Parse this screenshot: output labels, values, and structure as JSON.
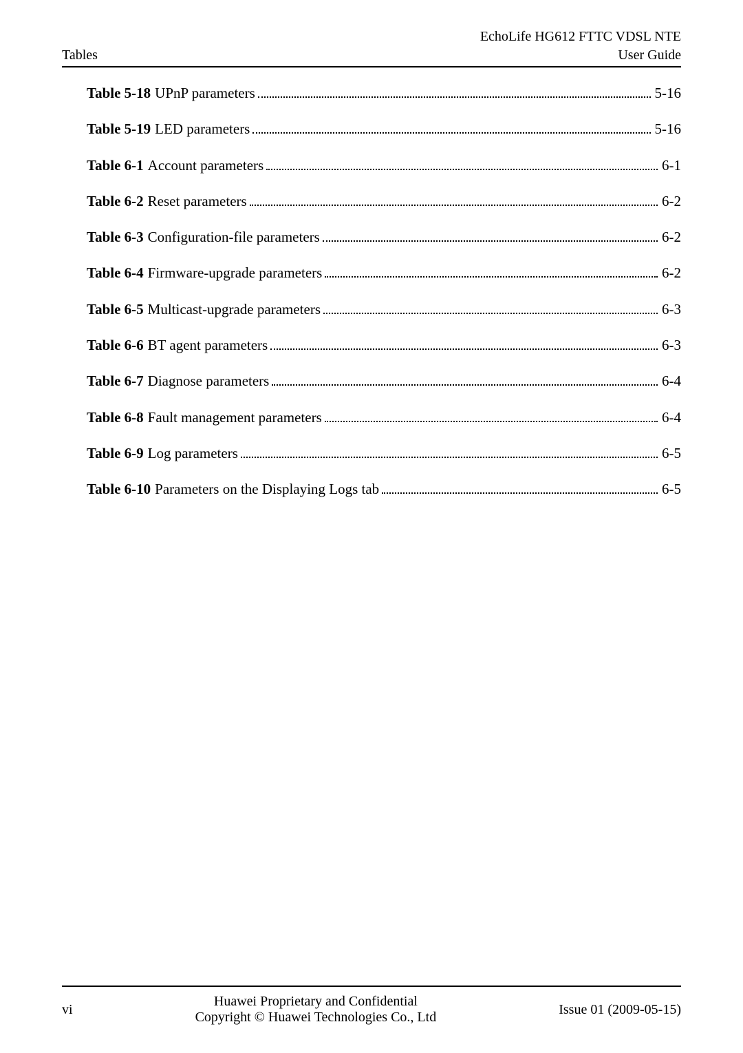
{
  "header": {
    "left": "Tables",
    "right_line1": "EchoLife HG612 FTTC VDSL NTE",
    "right_line2": "User Guide"
  },
  "toc": [
    {
      "label": "Table 5-18",
      "title": "UPnP parameters",
      "page": "5-16"
    },
    {
      "label": "Table 5-19",
      "title": "LED parameters",
      "page": "5-16"
    },
    {
      "label": "Table 6-1",
      "title": "Account parameters",
      "page": "6-1"
    },
    {
      "label": "Table 6-2",
      "title": "Reset parameters",
      "page": "6-2"
    },
    {
      "label": "Table 6-3",
      "title": "Configuration-file parameters",
      "page": "6-2"
    },
    {
      "label": "Table 6-4",
      "title": "Firmware-upgrade parameters",
      "page": "6-2"
    },
    {
      "label": "Table 6-5",
      "title": "Multicast-upgrade parameters",
      "page": "6-3"
    },
    {
      "label": "Table 6-6",
      "title": "BT agent parameters",
      "page": "6-3"
    },
    {
      "label": "Table 6-7",
      "title": "Diagnose parameters",
      "page": "6-4"
    },
    {
      "label": "Table 6-8",
      "title": "Fault management parameters",
      "page": "6-4"
    },
    {
      "label": "Table 6-9",
      "title": "Log parameters",
      "page": "6-5"
    },
    {
      "label": "Table 6-10",
      "title": "Parameters on the Displaying Logs tab",
      "page": "6-5"
    }
  ],
  "footer": {
    "page_number": "vi",
    "center_line1": "Huawei Proprietary and Confidential",
    "center_line2": "Copyright © Huawei Technologies Co., Ltd",
    "issue": "Issue 01 (2009-05-15)"
  }
}
